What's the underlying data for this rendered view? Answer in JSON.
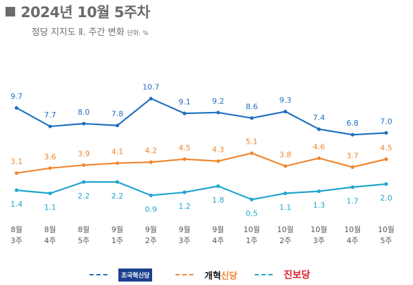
{
  "header": {
    "title": "2024년 10월 5주차",
    "subtitle": "정당 지지도 Ⅱ. 주간 변화",
    "unit": "단위: %"
  },
  "chart_data": {
    "type": "line",
    "categories": [
      [
        "8월",
        "3주"
      ],
      [
        "8월",
        "4주"
      ],
      [
        "8월",
        "5주"
      ],
      [
        "9월",
        "1주"
      ],
      [
        "9월",
        "2주"
      ],
      [
        "9월",
        "3주"
      ],
      [
        "9월",
        "4주"
      ],
      [
        "10월",
        "1주"
      ],
      [
        "10월",
        "2주"
      ],
      [
        "10월",
        "3주"
      ],
      [
        "10월",
        "4주"
      ],
      [
        "10월",
        "5주"
      ]
    ],
    "series": [
      {
        "name": "조국혁신당",
        "color": "#1f6fbf",
        "values": [
          9.7,
          7.7,
          8.0,
          7.8,
          10.7,
          9.1,
          9.2,
          8.6,
          9.3,
          7.4,
          6.8,
          7.0
        ]
      },
      {
        "name": "개혁신당",
        "color": "#f0862e",
        "values": [
          3.1,
          3.6,
          3.9,
          4.1,
          4.2,
          4.5,
          4.3,
          5.1,
          3.8,
          4.6,
          3.7,
          4.5
        ]
      },
      {
        "name": "진보당",
        "color": "#1ea5cf",
        "values": [
          1.4,
          1.1,
          2.2,
          2.2,
          0.9,
          1.2,
          1.8,
          0.5,
          1.1,
          1.3,
          1.7,
          2.0
        ]
      }
    ],
    "legend": {
      "position": "bottom",
      "logo_parts": {
        "개혁신당": [
          "개혁",
          "신당"
        ]
      }
    },
    "grid": false
  }
}
